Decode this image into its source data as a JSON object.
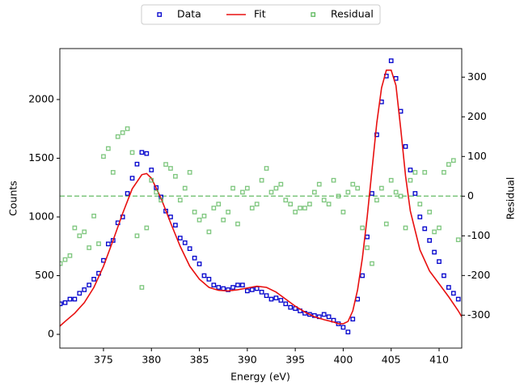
{
  "chart_data": {
    "type": "scatter",
    "xlabel": "Energy (eV)",
    "ylabel": "Counts",
    "y2label": "Residual",
    "x": [
      370.5,
      371,
      371.5,
      372,
      372.5,
      373,
      373.5,
      374,
      374.5,
      375,
      375.5,
      376,
      376.5,
      377,
      377.5,
      378,
      378.5,
      379,
      379.5,
      380,
      380.5,
      381,
      381.5,
      382,
      382.5,
      383,
      383.5,
      384,
      384.5,
      385,
      385.5,
      386,
      386.5,
      387,
      387.5,
      388,
      388.5,
      389,
      389.5,
      390,
      390.5,
      391,
      391.5,
      392,
      392.5,
      393,
      393.5,
      394,
      394.5,
      395,
      395.5,
      396,
      396.5,
      397,
      397.5,
      398,
      398.5,
      399,
      399.5,
      400,
      400.5,
      401,
      401.5,
      402,
      402.5,
      403,
      403.5,
      404,
      404.5,
      405,
      405.5,
      406,
      406.5,
      407,
      407.5,
      408,
      408.5,
      409,
      409.5,
      410,
      410.5,
      411,
      411.5,
      412
    ],
    "series": [
      {
        "name": "Data",
        "color": "#0000cc",
        "style": "marker",
        "values": [
          260,
          270,
          300,
          300,
          350,
          380,
          420,
          470,
          520,
          630,
          770,
          800,
          950,
          1000,
          1200,
          1330,
          1450,
          1550,
          1540,
          1400,
          1250,
          1170,
          1050,
          1000,
          930,
          820,
          780,
          730,
          650,
          600,
          500,
          470,
          420,
          400,
          390,
          380,
          400,
          420,
          420,
          370,
          380,
          390,
          360,
          330,
          300,
          310,
          290,
          260,
          230,
          220,
          200,
          180,
          170,
          160,
          150,
          170,
          150,
          120,
          90,
          60,
          20,
          130,
          300,
          500,
          830,
          1200,
          1700,
          1980,
          2200,
          2330,
          2180,
          1900,
          1600,
          1400,
          1200,
          1000,
          900,
          800,
          700,
          620,
          500,
          400,
          350,
          300
        ]
      },
      {
        "name": "Fit",
        "color": "#e81010",
        "style": "line",
        "x": [
          370.45,
          371,
          372,
          373,
          374,
          375,
          376,
          377,
          378,
          379,
          379.5,
          380,
          381,
          382,
          383,
          384,
          385,
          386,
          387,
          388,
          389,
          390,
          391,
          392,
          393,
          394,
          395,
          396,
          397,
          398,
          399,
          399.5,
          400,
          400.5,
          401,
          401.5,
          402,
          402.5,
          403,
          403.5,
          404,
          404.5,
          405,
          405.5,
          406,
          406.5,
          407,
          408,
          409,
          410,
          411,
          412,
          412.36
        ],
        "values": [
          70,
          110,
          180,
          270,
          400,
          580,
          800,
          1030,
          1240,
          1360,
          1370,
          1330,
          1160,
          950,
          750,
          580,
          470,
          400,
          375,
          370,
          380,
          395,
          410,
          400,
          360,
          300,
          240,
          190,
          150,
          125,
          105,
          90,
          90,
          110,
          200,
          380,
          650,
          1000,
          1400,
          1800,
          2100,
          2250,
          2250,
          2120,
          1750,
          1350,
          1050,
          720,
          540,
          430,
          320,
          200,
          150
        ]
      },
      {
        "name": "Residual",
        "color": "#5cb85c",
        "style": "marker",
        "axis": "y2",
        "values": [
          -170,
          -160,
          -150,
          -80,
          -100,
          -90,
          -130,
          -50,
          -120,
          100,
          120,
          60,
          150,
          160,
          170,
          110,
          -100,
          -230,
          -80,
          40,
          10,
          -10,
          80,
          70,
          50,
          -10,
          20,
          60,
          -40,
          -60,
          -50,
          -90,
          -30,
          -20,
          -60,
          -40,
          20,
          -70,
          10,
          20,
          -30,
          -20,
          40,
          70,
          10,
          20,
          30,
          -10,
          -20,
          -40,
          -30,
          -30,
          -20,
          10,
          30,
          -10,
          -20,
          40,
          0,
          -40,
          10,
          30,
          20,
          -80,
          -130,
          -170,
          -10,
          20,
          -70,
          40,
          10,
          0,
          -80,
          40,
          60,
          -20,
          60,
          -40,
          -90,
          -80,
          60,
          80,
          90,
          -110
        ]
      }
    ],
    "hline": {
      "axis": "y2",
      "value": 0,
      "color": "#5cb85c"
    },
    "xlim": [
      370.45,
      412.36
    ],
    "xticks": [
      375,
      380,
      385,
      390,
      395,
      400,
      405,
      410
    ],
    "ylim": [
      -117,
      2434
    ],
    "yticks": [
      0,
      500,
      1000,
      1500,
      2000
    ],
    "y2lim": [
      -383,
      372
    ],
    "y2ticks": [
      -300,
      -200,
      -100,
      0,
      100,
      200,
      300
    ],
    "legend": "upper center"
  }
}
